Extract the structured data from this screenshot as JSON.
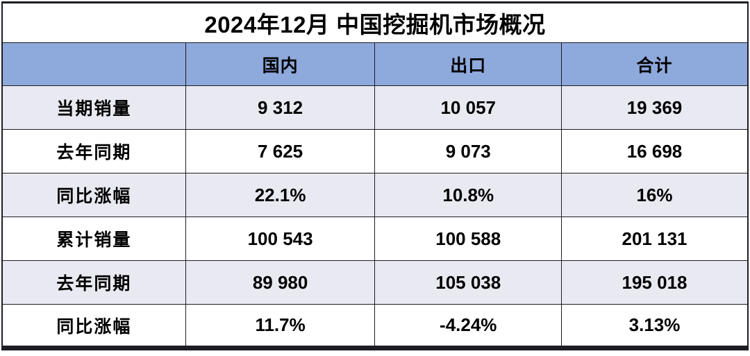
{
  "title": "2024年12月 中国挖掘机市场概况",
  "table": {
    "columns": [
      "",
      "国内",
      "出口",
      "合计"
    ],
    "rows": [
      {
        "label": "当期销量",
        "values": [
          "9 312",
          "10 057",
          "19 369"
        ]
      },
      {
        "label": "去年同期",
        "values": [
          "7 625",
          "9 073",
          "16 698"
        ]
      },
      {
        "label": "同比涨幅",
        "values": [
          "22.1%",
          "10.8%",
          "16%"
        ]
      },
      {
        "label": "累计销量",
        "values": [
          "100 543",
          "100 588",
          "201 131"
        ]
      },
      {
        "label": "去年同期",
        "values": [
          "89 980",
          "105 038",
          "195 018"
        ]
      },
      {
        "label": "同比涨幅",
        "values": [
          "11.7%",
          "-4.24%",
          "3.13%"
        ]
      }
    ]
  },
  "chart_data": {
    "type": "table",
    "title": "2024年12月 中国挖掘机市场概况",
    "columns": [
      "",
      "国内",
      "出口",
      "合计"
    ],
    "rows": [
      [
        "当期销量",
        "9 312",
        "10 057",
        "19 369"
      ],
      [
        "去年同期",
        "7 625",
        "9 073",
        "16 698"
      ],
      [
        "同比涨幅",
        "22.1%",
        "10.8%",
        "16%"
      ],
      [
        "累计销量",
        "100 543",
        "100 588",
        "201 131"
      ],
      [
        "去年同期",
        "89 980",
        "105 038",
        "195 018"
      ],
      [
        "同比涨幅",
        "11.7%",
        "-4.24%",
        "3.13%"
      ]
    ],
    "notes": {
      "current_sales": {
        "domestic": 9312,
        "export": 10057,
        "total": 19369
      },
      "last_year_same_period": {
        "domestic": 7625,
        "export": 9073,
        "total": 16698
      },
      "yoy_change_pct": {
        "domestic": 22.1,
        "export": 10.8,
        "total": 16
      },
      "cumulative_sales": {
        "domestic": 100543,
        "export": 100588,
        "total": 201131
      },
      "cumulative_last_year": {
        "domestic": 89980,
        "export": 105038,
        "total": 195018
      },
      "cumulative_yoy_change_pct": {
        "domestic": 11.7,
        "export": -4.24,
        "total": 3.13
      }
    },
    "layout": {
      "striped_rows": true,
      "header_fill": "#8EA9DB",
      "stripe_fill": "#E9E9F1"
    }
  },
  "colors": {
    "header_bg": "#8EA9DB",
    "stripe_bg": "#E9E9F1",
    "row_bg": "#FFFFFF",
    "border": "#1C1C24",
    "text": "#000000"
  }
}
